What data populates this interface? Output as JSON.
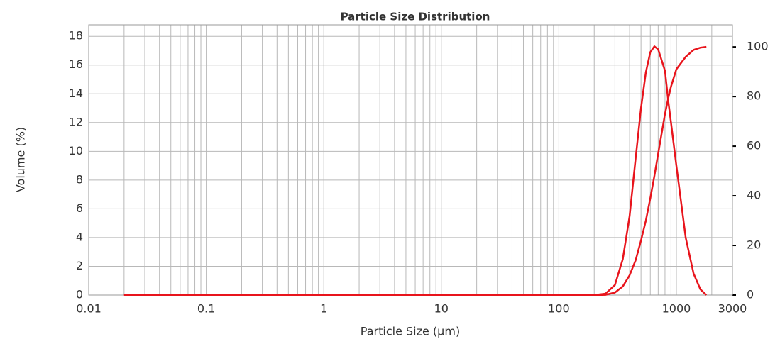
{
  "chart_data": {
    "type": "line",
    "title": "Particle Size Distribution",
    "x_label": "Particle Size (µm)",
    "y_label": "Volume (%)",
    "x": [
      0.02,
      200,
      250,
      300,
      350,
      400,
      450,
      500,
      550,
      600,
      650,
      700,
      800,
      850,
      900,
      1000,
      1200,
      1400,
      1600,
      1800
    ],
    "series": [
      {
        "color": "#e8141c",
        "values": [
          0,
          0,
          0.1,
          0.7,
          2.5,
          5.5,
          9.5,
          13,
          15.5,
          16.9,
          17.3,
          17.1,
          15.6,
          13.6,
          12,
          9,
          4,
          1.5,
          0.4,
          0
        ]
      },
      {
        "color": "#e8141c",
        "axis": "y2",
        "values": [
          0,
          0,
          0.1,
          1,
          3.5,
          8,
          14,
          22,
          30,
          39,
          48,
          57,
          73,
          79,
          84,
          91,
          96,
          98.8,
          99.7,
          100
        ]
      }
    ],
    "xscale": "log",
    "xlim": [
      0.01,
      3000
    ],
    "xticks": [
      0.01,
      0.1,
      1,
      10,
      100,
      1000,
      3000
    ],
    "ylim": [
      0,
      18.8
    ],
    "yticks": [
      0,
      2,
      4,
      6,
      8,
      10,
      12,
      14,
      16,
      18
    ],
    "y2lim": [
      0,
      108.9
    ],
    "y2ticks": [
      0,
      20,
      40,
      60,
      80,
      100
    ],
    "grid": true
  }
}
